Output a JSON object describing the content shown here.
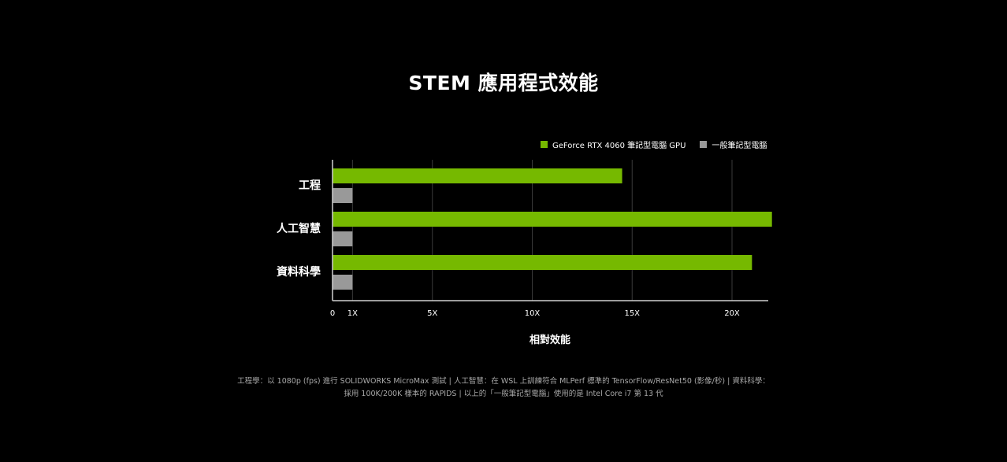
{
  "chart_data": {
    "type": "bar",
    "orientation": "horizontal",
    "title": "STEM 應用程式效能",
    "categories": [
      "工程",
      "人工智慧",
      "資料科學"
    ],
    "series": [
      {
        "name": "GeForce RTX 4060 筆記型電腦 GPU",
        "color": "#76b900",
        "values": [
          14.5,
          22.0,
          21.0
        ]
      },
      {
        "name": "一般筆記型電腦",
        "color": "#999999",
        "values": [
          1,
          1,
          1
        ]
      }
    ],
    "xlabel": "相對效能",
    "ylabel": "",
    "xlim": [
      0,
      22
    ],
    "xticks": [
      {
        "value": 0,
        "label": "0"
      },
      {
        "value": 1,
        "label": "1X"
      },
      {
        "value": 5,
        "label": "5X"
      },
      {
        "value": 10,
        "label": "10X"
      },
      {
        "value": 15,
        "label": "15X"
      },
      {
        "value": 20,
        "label": "20X"
      }
    ],
    "grid": true,
    "legend_position": "top-right"
  },
  "footnote": [
    "工程學：以 1080p (fps) 進行 SOLIDWORKS MicroMax 測試 | 人工智慧：在 WSL 上訓練符合 MLPerf 標準的 TensorFlow/ResNet50 (影像/秒) | 資料科學：",
    "採用 100K/200K 樣本的 RAPIDS | 以上的「一般筆記型電腦」使用的是 Intel Core i7 第 13 代"
  ]
}
